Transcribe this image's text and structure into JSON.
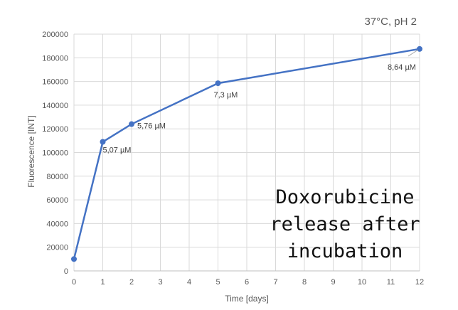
{
  "chart_data": {
    "type": "line",
    "title": "",
    "xlabel": "Time [days]",
    "ylabel": "Fluorescence [INT]",
    "xlim": [
      0,
      12
    ],
    "ylim": [
      0,
      200000
    ],
    "grid": true,
    "x_ticks": [
      "0",
      "1",
      "2",
      "3",
      "4",
      "5",
      "6",
      "7",
      "8",
      "9",
      "10",
      "11",
      "12"
    ],
    "y_ticks": [
      "0",
      "20000",
      "40000",
      "60000",
      "80000",
      "100000",
      "120000",
      "140000",
      "160000",
      "180000",
      "200000"
    ],
    "series": [
      {
        "color": "#4472c4",
        "points": [
          {
            "x": 0,
            "y": 10000,
            "label": ""
          },
          {
            "x": 1,
            "y": 109000,
            "label": "5,07 µM"
          },
          {
            "x": 2,
            "y": 124000,
            "label": "5,76 µM"
          },
          {
            "x": 5,
            "y": 158500,
            "label": "7,3 µM"
          },
          {
            "x": 12,
            "y": 187500,
            "label": "8,64 µM"
          }
        ]
      }
    ],
    "annotations": {
      "condition": "37°C, pH 2",
      "overlay_lines": [
        "Doxorubicine",
        "release after",
        "incubation"
      ]
    }
  }
}
